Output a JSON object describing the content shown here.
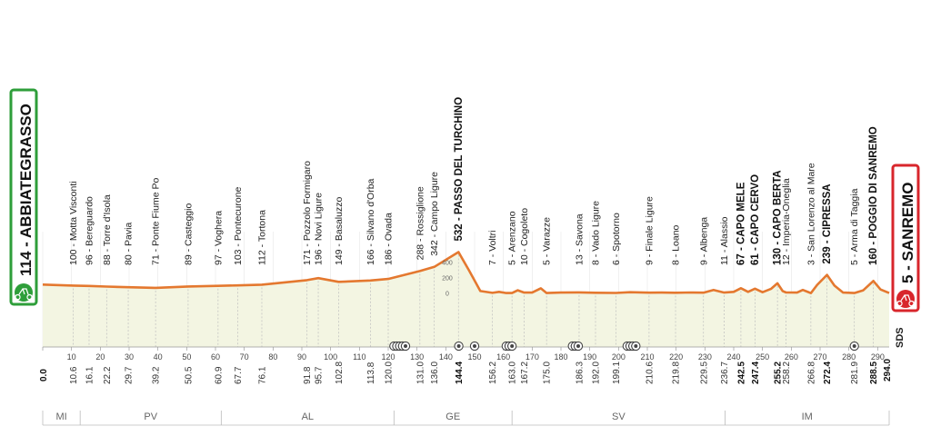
{
  "chart_data": {
    "type": "area",
    "start": {
      "label": "114 - ABBIATEGRASSO",
      "color": "#2e9e3a"
    },
    "finish": {
      "label": "5 - SANREMO",
      "color": "#d8262c"
    },
    "brand": "SDS",
    "xlim": [
      0,
      294
    ],
    "ylim": [
      0,
      600
    ],
    "x_ticks": [
      0,
      10,
      20,
      30,
      40,
      50,
      60,
      70,
      80,
      90,
      100,
      110,
      120,
      130,
      140,
      150,
      160,
      170,
      180,
      190,
      200,
      210,
      220,
      230,
      240,
      250,
      260,
      270,
      280,
      290
    ],
    "y_ticks": [
      0,
      200,
      400
    ],
    "profile": [
      [
        0,
        114
      ],
      [
        10.6,
        100
      ],
      [
        16.1,
        96
      ],
      [
        22.2,
        88
      ],
      [
        29.7,
        80
      ],
      [
        39.2,
        71
      ],
      [
        50.5,
        89
      ],
      [
        60.9,
        97
      ],
      [
        67.7,
        103
      ],
      [
        76.1,
        112
      ],
      [
        91.8,
        171
      ],
      [
        95.7,
        196
      ],
      [
        102.8,
        149
      ],
      [
        113.8,
        166
      ],
      [
        120,
        186
      ],
      [
        131,
        288
      ],
      [
        136,
        342
      ],
      [
        144.4,
        532
      ],
      [
        148,
        300
      ],
      [
        152,
        30
      ],
      [
        156.2,
        7
      ],
      [
        158.5,
        20
      ],
      [
        161,
        5
      ],
      [
        163,
        5
      ],
      [
        165,
        40
      ],
      [
        167.2,
        10
      ],
      [
        170,
        10
      ],
      [
        173,
        65
      ],
      [
        175,
        5
      ],
      [
        180,
        10
      ],
      [
        186.3,
        13
      ],
      [
        192,
        8
      ],
      [
        199.1,
        6
      ],
      [
        204,
        15
      ],
      [
        210.6,
        9
      ],
      [
        215,
        10
      ],
      [
        219.8,
        8
      ],
      [
        225,
        12
      ],
      [
        229.5,
        9
      ],
      [
        233,
        45
      ],
      [
        236.7,
        11
      ],
      [
        240,
        20
      ],
      [
        242.5,
        67
      ],
      [
        245,
        20
      ],
      [
        247.4,
        61
      ],
      [
        250,
        15
      ],
      [
        253,
        60
      ],
      [
        255.2,
        130
      ],
      [
        257,
        30
      ],
      [
        258.2,
        12
      ],
      [
        262,
        10
      ],
      [
        264,
        45
      ],
      [
        266.8,
        3
      ],
      [
        269,
        110
      ],
      [
        272.4,
        239
      ],
      [
        275,
        100
      ],
      [
        278,
        10
      ],
      [
        281.9,
        5
      ],
      [
        285,
        40
      ],
      [
        288.5,
        160
      ],
      [
        291,
        50
      ],
      [
        294,
        5
      ]
    ],
    "waypoints": [
      {
        "km": "10.6",
        "x": 10.6,
        "label": "100 - Motta Visconti",
        "bold": false
      },
      {
        "km": "16.1",
        "x": 16.1,
        "label": "96 - Bereguardo",
        "bold": false
      },
      {
        "km": "22.2",
        "x": 22.2,
        "label": "88 - Torre d'Isola",
        "bold": false
      },
      {
        "km": "29.7",
        "x": 29.7,
        "label": "80 - Pavia",
        "bold": false
      },
      {
        "km": "39.2",
        "x": 39.2,
        "label": "71 - Ponte Fiume Po",
        "bold": false
      },
      {
        "km": "50.5",
        "x": 50.5,
        "label": "89 - Casteggio",
        "bold": false
      },
      {
        "km": "60.9",
        "x": 60.9,
        "label": "97 - Voghera",
        "bold": false
      },
      {
        "km": "67.7",
        "x": 67.7,
        "label": "103 - Pontecurone",
        "bold": false
      },
      {
        "km": "76.1",
        "x": 76.1,
        "label": "112 - Tortona",
        "bold": false
      },
      {
        "km": "91.8",
        "x": 91.8,
        "label": "171 - Pozzolo Formigaro",
        "bold": false
      },
      {
        "km": "95.7",
        "x": 95.7,
        "label": "196 - Novi Ligure",
        "bold": false
      },
      {
        "km": "102.8",
        "x": 102.8,
        "label": "149 - Basaluzzo",
        "bold": false
      },
      {
        "km": "113.8",
        "x": 113.8,
        "label": "166 - Silvano d'Orba",
        "bold": false
      },
      {
        "km": "120.0",
        "x": 120.0,
        "label": "186 - Ovada",
        "bold": false
      },
      {
        "km": "131.0",
        "x": 131.0,
        "label": "288 - Rossiglione",
        "bold": false
      },
      {
        "km": "136.0",
        "x": 136.0,
        "label": "342 - Campo Ligure",
        "bold": false
      },
      {
        "km": "144.4",
        "x": 144.4,
        "label": "532 - PASSO DEL TURCHINO",
        "bold": true
      },
      {
        "km": "156.2",
        "x": 156.2,
        "label": "7 - Voltri",
        "bold": false
      },
      {
        "km": "163.0",
        "x": 163.0,
        "label": "5 - Arenzano",
        "bold": false
      },
      {
        "km": "167.2",
        "x": 167.2,
        "label": "10 - Cogoleto",
        "bold": false
      },
      {
        "km": "175.0",
        "x": 175.0,
        "label": "5 - Varazze",
        "bold": false
      },
      {
        "km": "186.3",
        "x": 186.3,
        "label": "13 - Savona",
        "bold": false
      },
      {
        "km": "192.0",
        "x": 192.0,
        "label": "8 - Vado Ligure",
        "bold": false
      },
      {
        "km": "199.1",
        "x": 199.1,
        "label": "6 - Spotorno",
        "bold": false
      },
      {
        "km": "210.6",
        "x": 210.6,
        "label": "9 - Finale Ligure",
        "bold": false
      },
      {
        "km": "219.8",
        "x": 219.8,
        "label": "8 - Loano",
        "bold": false
      },
      {
        "km": "229.5",
        "x": 229.5,
        "label": "9 - Albenga",
        "bold": false
      },
      {
        "km": "236.7",
        "x": 236.7,
        "label": "11 - Alassio",
        "bold": false
      },
      {
        "km": "242.5",
        "x": 242.5,
        "label": "67 - CAPO MELE",
        "bold": true
      },
      {
        "km": "247.4",
        "x": 247.4,
        "label": "61 - CAPO CERVO",
        "bold": true
      },
      {
        "km": "255.2",
        "x": 255.2,
        "label": "130 - CAPO BERTA",
        "bold": true
      },
      {
        "km": "258.2",
        "x": 258.2,
        "label": "12 - Imperia-Oneglia",
        "bold": false
      },
      {
        "km": "266.8",
        "x": 266.8,
        "label": "3 - San Lorenzo al Mare",
        "bold": false
      },
      {
        "km": "272.4",
        "x": 272.4,
        "label": "239 - CIPRESSA",
        "bold": true
      },
      {
        "km": "281.9",
        "x": 281.9,
        "label": "5 - Arma di Taggia",
        "bold": false
      },
      {
        "km": "288.5",
        "x": 288.5,
        "label": "160 - POGGIO DI SANREMO",
        "bold": true
      }
    ],
    "km_start": "0.0",
    "km_end": "294.0",
    "markers": [
      122,
      123,
      124,
      125,
      126,
      144.5,
      150,
      161,
      162,
      163,
      184,
      185,
      186,
      203,
      204,
      205,
      206,
      281.9
    ],
    "regions": [
      {
        "name": "MI",
        "from": 0,
        "to": 13
      },
      {
        "name": "PV",
        "from": 13,
        "to": 62
      },
      {
        "name": "AL",
        "from": 62,
        "to": 122
      },
      {
        "name": "GE",
        "from": 122,
        "to": 163
      },
      {
        "name": "SV",
        "from": 163,
        "to": 237
      },
      {
        "name": "IM",
        "from": 237,
        "to": 294
      }
    ]
  }
}
